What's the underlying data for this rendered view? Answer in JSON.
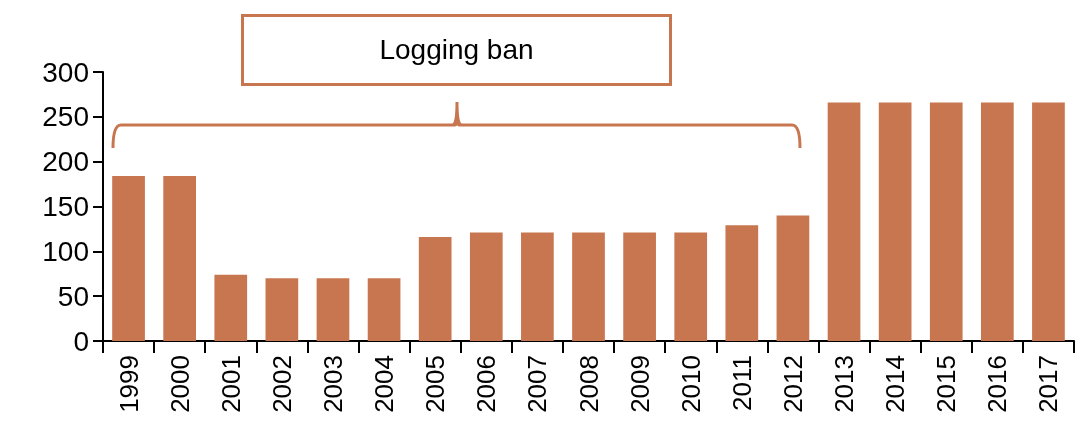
{
  "chart_data": {
    "type": "bar",
    "categories": [
      "1999",
      "2000",
      "2001",
      "2002",
      "2003",
      "2004",
      "2005",
      "2006",
      "2007",
      "2008",
      "2009",
      "2010",
      "2011",
      "2012",
      "2013",
      "2014",
      "2015",
      "2016",
      "2017"
    ],
    "values": [
      184,
      184,
      74,
      70,
      70,
      70,
      116,
      121,
      121,
      121,
      121,
      121,
      129,
      140,
      266,
      266,
      266,
      266,
      266
    ],
    "color": "#c8764f",
    "ylim": [
      0,
      300
    ],
    "yticks": [
      0,
      50,
      100,
      150,
      200,
      250,
      300
    ],
    "grid": false,
    "annotations": [
      "Logging ban"
    ]
  }
}
